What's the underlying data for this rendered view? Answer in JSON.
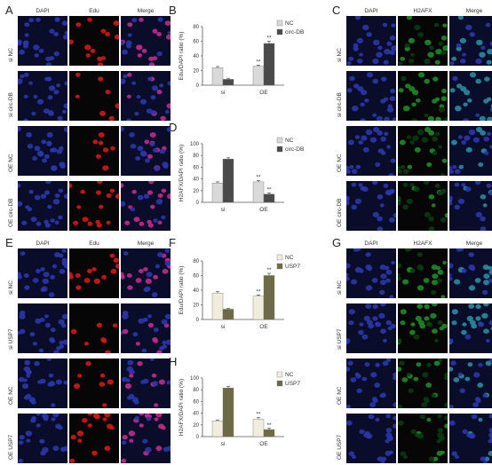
{
  "panels": {
    "A": {
      "letter": "A",
      "columns": [
        "DAPI",
        "Edu",
        "Merge"
      ],
      "rows": [
        "si NC",
        "si circ-DB",
        "OE NC",
        "OE circ-DB"
      ]
    },
    "C": {
      "letter": "C",
      "columns": [
        "DAPI",
        "H2AFX",
        "Merge"
      ],
      "rows": [
        "si NC",
        "si circ-DB",
        "OE NC",
        "OE circ-DB"
      ]
    },
    "E": {
      "letter": "E",
      "columns": [
        "DAPI",
        "Edu",
        "Merge"
      ],
      "rows": [
        "si NC",
        "si USP7",
        "OE NC",
        "OE USP7"
      ]
    },
    "G": {
      "letter": "G",
      "columns": [
        "DAPI",
        "H2AFX",
        "Merge"
      ],
      "rows": [
        "si NC",
        "si USP7",
        "OE NC",
        "OE USP7"
      ]
    }
  },
  "colors": {
    "dapi": "#2a36a8",
    "edu": "#d01818",
    "h2afx": "#1f8a2a",
    "bar_nc_gray": "#d9d9d9",
    "bar_treat_gray": "#4a4a4a",
    "bar_nc_cream": "#f1eddd",
    "bar_treat_olive": "#6e6a45"
  },
  "chart_data": [
    {
      "id": "B",
      "letter": "B",
      "type": "bar",
      "categories": [
        "si",
        "OE"
      ],
      "series": [
        {
          "name": "NC",
          "values": [
            24,
            26
          ],
          "errors": [
            1.5,
            1.5
          ]
        },
        {
          "name": "circ-DB",
          "values": [
            8,
            57
          ],
          "errors": [
            1.5,
            3
          ]
        }
      ],
      "significance": [
        [
          "",
          "**"
        ],
        [
          "",
          "**"
        ]
      ],
      "ylabel": "Edu/DAPI ratio (%)",
      "ylim": [
        0,
        80
      ],
      "yticks": [
        "0",
        "20",
        "40",
        "60",
        "80"
      ],
      "legend": "top-right",
      "palette": "gray"
    },
    {
      "id": "D",
      "letter": "D",
      "type": "bar",
      "categories": [
        "si",
        "OE"
      ],
      "series": [
        {
          "name": "NC",
          "values": [
            33,
            35
          ],
          "errors": [
            2,
            2.5
          ]
        },
        {
          "name": "circ-DB",
          "values": [
            74,
            14
          ],
          "errors": [
            2,
            2
          ]
        }
      ],
      "significance": [
        [
          "",
          "**"
        ],
        [
          "",
          "**"
        ]
      ],
      "ylabel": "H2AFX/DAPI ratio (%)",
      "ylim": [
        0,
        100
      ],
      "yticks": [
        "0",
        "20",
        "40",
        "60",
        "80",
        "100"
      ],
      "legend": "top-right",
      "palette": "gray"
    },
    {
      "id": "F",
      "letter": "F",
      "type": "bar",
      "categories": [
        "si",
        "OE"
      ],
      "series": [
        {
          "name": "NC",
          "values": [
            36,
            32
          ],
          "errors": [
            2,
            1.5
          ]
        },
        {
          "name": "USP7",
          "values": [
            14,
            60
          ],
          "errors": [
            1,
            3
          ]
        }
      ],
      "significance": [
        [
          "",
          "**"
        ],
        [
          "",
          "**"
        ]
      ],
      "ylabel": "Edu/DAPI ratio (%)",
      "ylim": [
        0,
        80
      ],
      "yticks": [
        "0",
        "20",
        "40",
        "60",
        "80"
      ],
      "legend": "top-right",
      "palette": "olive"
    },
    {
      "id": "H",
      "letter": "H",
      "type": "bar",
      "categories": [
        "si",
        "OE"
      ],
      "series": [
        {
          "name": "NC",
          "values": [
            27,
            30
          ],
          "errors": [
            1.5,
            2.5
          ]
        },
        {
          "name": "USP7",
          "values": [
            83,
            12
          ],
          "errors": [
            2.5,
            2
          ]
        }
      ],
      "significance": [
        [
          "",
          "**"
        ],
        [
          "",
          "**"
        ]
      ],
      "ylabel": "H2AFX/DAPI ratio (%)",
      "ylim": [
        0,
        100
      ],
      "yticks": [
        "0",
        "20",
        "40",
        "60",
        "80",
        "100"
      ],
      "legend": "top-right",
      "palette": "olive"
    }
  ]
}
